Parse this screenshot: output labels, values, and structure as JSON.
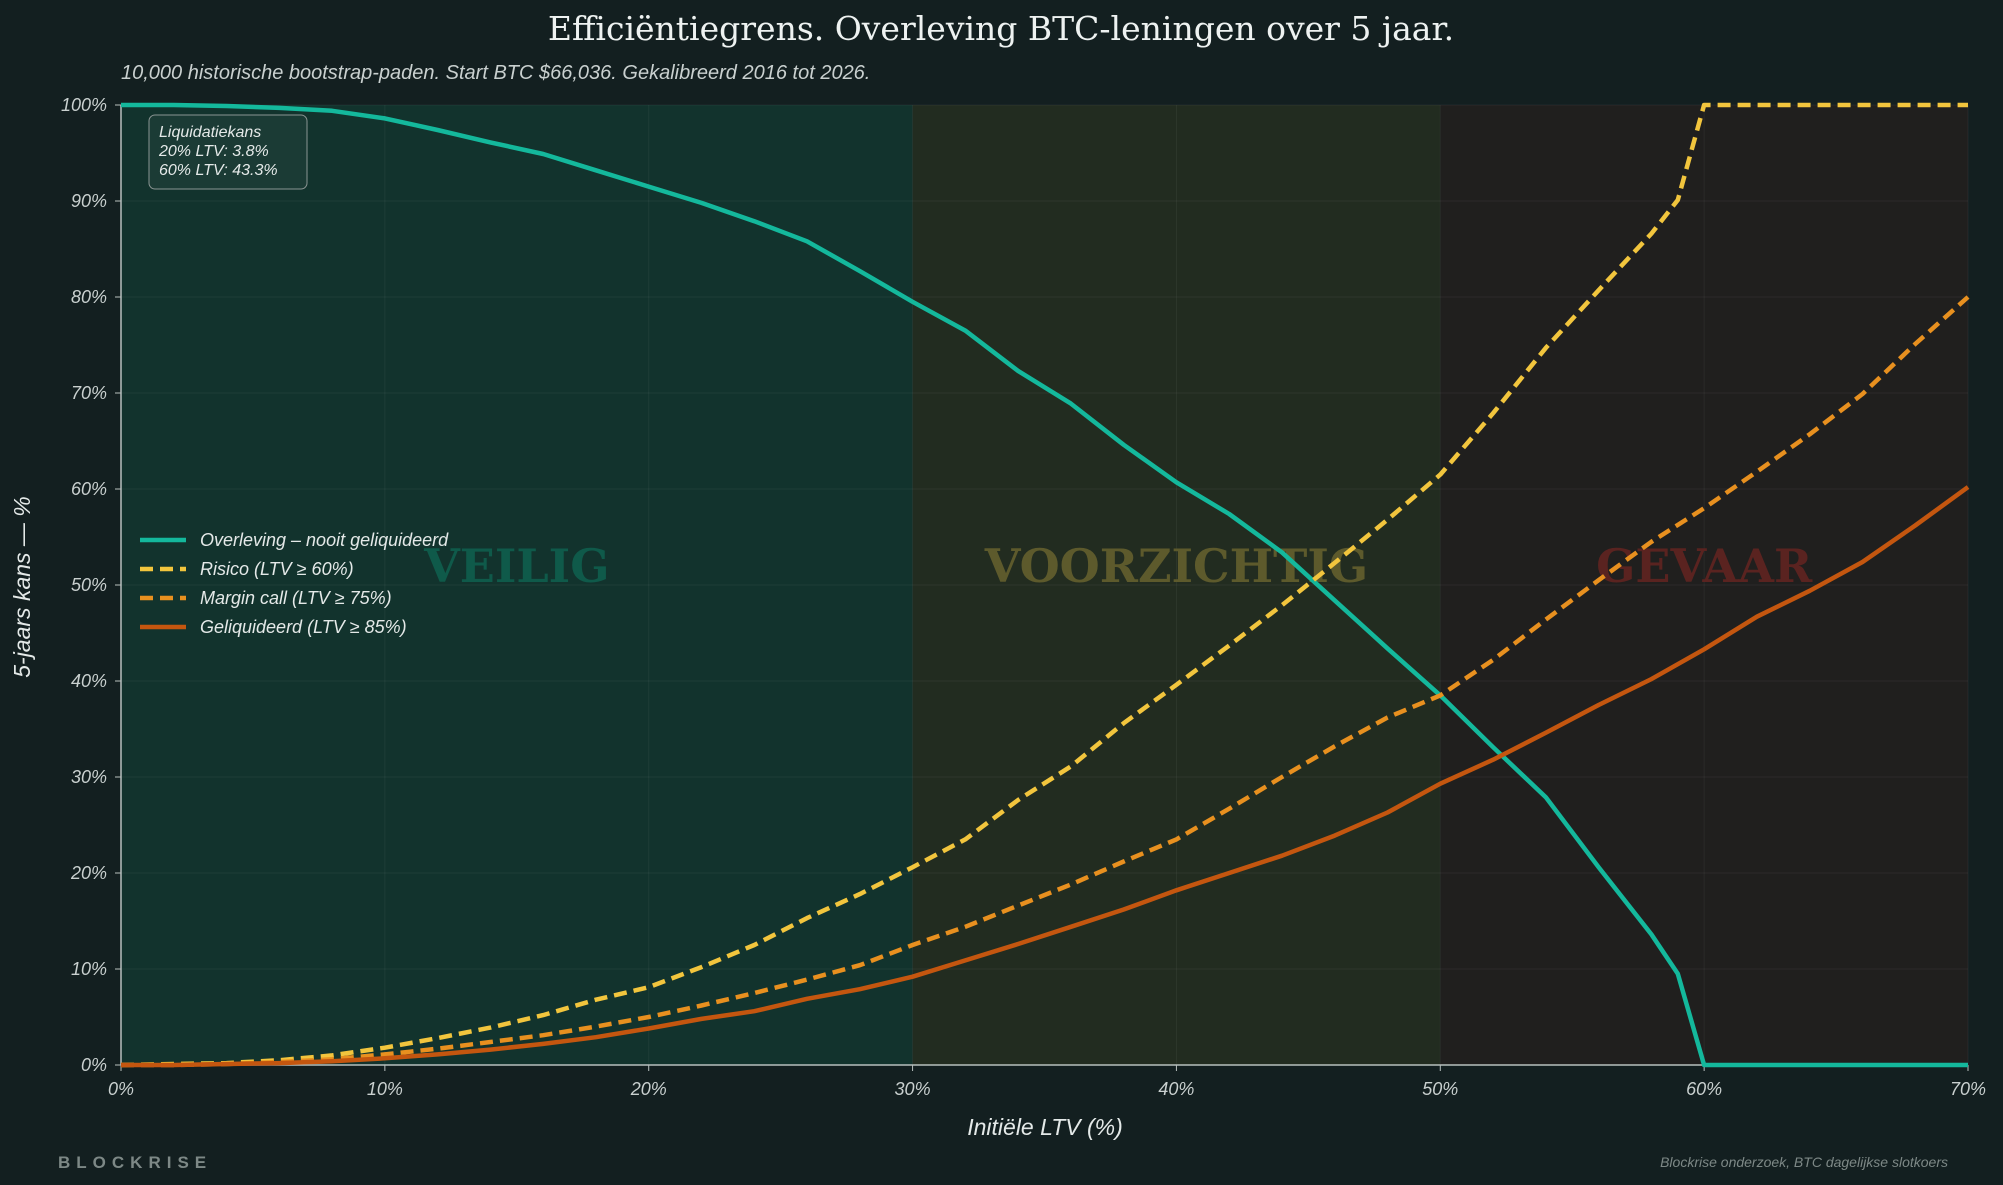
{
  "chart_data": {
    "type": "line",
    "title": "Efficiëntiegrens. Overleving BTC-leningen over 5 jaar.",
    "subtitle": "10,000 historische bootstrap-paden. Start BTC $66,036. Gekalibreerd 2016 tot 2026.",
    "xlabel": "Initiële LTV (%)",
    "ylabel": "5-jaars kans — %",
    "xlim": [
      0,
      70
    ],
    "ylim": [
      0,
      100
    ],
    "x_ticks": [
      0,
      10,
      20,
      30,
      40,
      50,
      60,
      70
    ],
    "x_tick_labels": [
      "0%",
      "10%",
      "20%",
      "30%",
      "40%",
      "50%",
      "60%",
      "70%"
    ],
    "y_ticks": [
      0,
      10,
      20,
      30,
      40,
      50,
      60,
      70,
      80,
      90,
      100
    ],
    "y_tick_labels": [
      "0%",
      "10%",
      "20%",
      "30%",
      "40%",
      "50%",
      "60%",
      "70%",
      "80%",
      "90%",
      "100%"
    ],
    "grid": true,
    "legend_position": "center-left",
    "zones": [
      {
        "label": "VEILIG",
        "from": 0,
        "to": 30,
        "fill": "#12332d",
        "text_color": "#0f5a4a"
      },
      {
        "label": "VOORZICHTIG",
        "from": 30,
        "to": 50,
        "fill": "#222c20",
        "text_color": "#5d5a2c"
      },
      {
        "label": "GEVAAR",
        "from": 50,
        "to": 70,
        "fill": "#201f1e",
        "text_color": "#5a2320"
      }
    ],
    "annotation": {
      "title": "Liquidatiekans",
      "lines": [
        "20% LTV: 3.8%",
        "60% LTV: 43.3%"
      ]
    },
    "series": [
      {
        "name": "Overleving – nooit geliquideerd",
        "color": "#14b89c",
        "dash": "solid",
        "x": [
          0,
          2,
          4,
          6,
          8,
          10,
          12,
          14,
          16,
          18,
          20,
          22,
          24,
          26,
          28,
          30,
          32,
          34,
          36,
          38,
          40,
          42,
          44,
          46,
          48,
          50,
          52,
          54,
          56,
          58,
          59,
          60,
          62,
          64,
          66,
          68,
          70
        ],
        "values": [
          100,
          100,
          99.9,
          99.7,
          99.4,
          98.6,
          97.4,
          96.1,
          94.9,
          93.2,
          91.5,
          89.8,
          87.9,
          85.8,
          82.7,
          79.5,
          76.5,
          72.3,
          68.9,
          64.6,
          60.7,
          57.4,
          53.4,
          48.4,
          43.4,
          38.5,
          33.1,
          27.9,
          20.6,
          13.6,
          9.5,
          0,
          0,
          0,
          0,
          0,
          0
        ]
      },
      {
        "name": "Risico (LTV ≥ 60%)",
        "color": "#f2c53d",
        "dash": "dashed",
        "x": [
          0,
          2,
          4,
          6,
          8,
          10,
          12,
          14,
          16,
          18,
          20,
          22,
          24,
          26,
          28,
          30,
          32,
          34,
          36,
          38,
          40,
          42,
          44,
          46,
          48,
          50,
          52,
          54,
          56,
          58,
          59,
          60,
          62,
          64,
          66,
          68,
          70
        ],
        "values": [
          0,
          0.1,
          0.2,
          0.5,
          1,
          1.8,
          2.8,
          3.9,
          5.2,
          6.8,
          8.1,
          10.2,
          12.5,
          15.3,
          17.8,
          20.6,
          23.5,
          27.6,
          31.1,
          35.6,
          39.6,
          43.7,
          47.9,
          52.3,
          56.8,
          61.5,
          67.9,
          74.7,
          80.7,
          86.6,
          90.1,
          100,
          100,
          100,
          100,
          100,
          100
        ]
      },
      {
        "name": "Margin call (LTV ≥ 75%)",
        "color": "#e8901f",
        "dash": "dashed",
        "x": [
          0,
          2,
          4,
          6,
          8,
          10,
          12,
          14,
          16,
          18,
          20,
          22,
          24,
          26,
          28,
          30,
          32,
          34,
          36,
          38,
          40,
          42,
          44,
          46,
          48,
          50,
          52,
          54,
          56,
          58,
          60,
          62,
          64,
          66,
          68,
          70
        ],
        "values": [
          0,
          0,
          0.1,
          0.3,
          0.6,
          1.1,
          1.7,
          2.4,
          3.1,
          4,
          5,
          6.2,
          7.5,
          8.9,
          10.4,
          12.5,
          14.4,
          16.6,
          18.8,
          21.2,
          23.5,
          26.7,
          30,
          33.2,
          36.2,
          38.5,
          42.2,
          46.4,
          50.5,
          54.5,
          58,
          61.8,
          65.7,
          69.9,
          75.1,
          80
        ]
      },
      {
        "name": "Geliquideerd (LTV ≥ 85%)",
        "color": "#c4560f",
        "dash": "solid",
        "x": [
          0,
          2,
          4,
          6,
          8,
          10,
          12,
          14,
          16,
          18,
          20,
          22,
          24,
          26,
          28,
          30,
          32,
          34,
          36,
          38,
          40,
          42,
          44,
          46,
          48,
          50,
          52,
          54,
          56,
          58,
          60,
          62,
          64,
          66,
          68,
          70
        ],
        "values": [
          0,
          0,
          0.1,
          0.2,
          0.4,
          0.7,
          1.1,
          1.6,
          2.2,
          2.9,
          3.8,
          4.8,
          5.6,
          6.9,
          7.9,
          9.2,
          10.9,
          12.6,
          14.4,
          16.2,
          18.2,
          20,
          21.8,
          23.9,
          26.3,
          29.3,
          31.8,
          34.6,
          37.5,
          40.2,
          43.3,
          46.7,
          49.4,
          52.4,
          56.2,
          60.2
        ]
      }
    ]
  },
  "footer": {
    "brand": "BLOCKRISE",
    "source": "Blockrise onderzoek, BTC dagelijkse slotkoers"
  }
}
